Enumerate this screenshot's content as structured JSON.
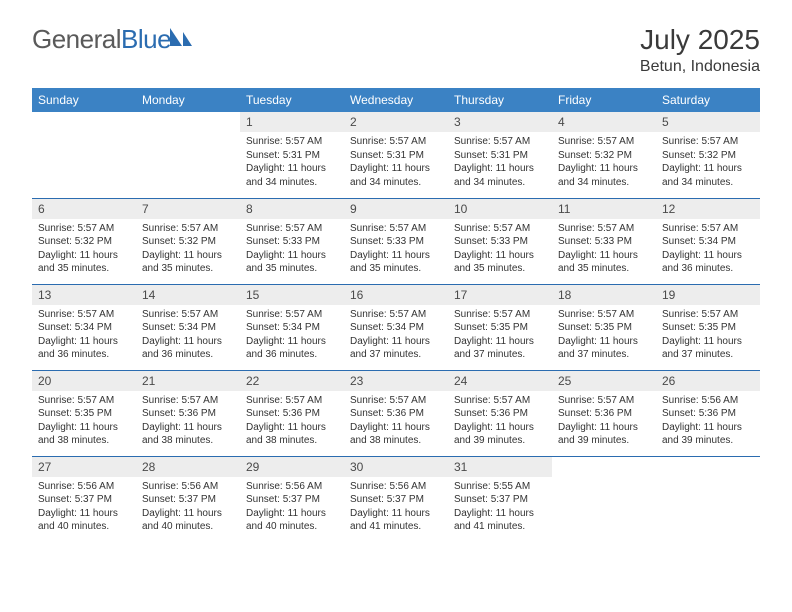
{
  "brand": {
    "part1": "General",
    "part2": "Blue"
  },
  "title": "July 2025",
  "location": "Betun, Indonesia",
  "colors": {
    "header_bg": "#3b82c4",
    "header_text": "#ffffff",
    "daynum_bg": "#ededed",
    "daynum_text": "#4a4a4a",
    "body_text": "#333333",
    "rule": "#2b6cb0",
    "logo_gray": "#5a5a5a",
    "logo_blue": "#2b6cb0"
  },
  "weekdays": [
    "Sunday",
    "Monday",
    "Tuesday",
    "Wednesday",
    "Thursday",
    "Friday",
    "Saturday"
  ],
  "weeks": [
    [
      null,
      null,
      {
        "num": "1",
        "sunrise": "Sunrise: 5:57 AM",
        "sunset": "Sunset: 5:31 PM",
        "daylight": "Daylight: 11 hours and 34 minutes."
      },
      {
        "num": "2",
        "sunrise": "Sunrise: 5:57 AM",
        "sunset": "Sunset: 5:31 PM",
        "daylight": "Daylight: 11 hours and 34 minutes."
      },
      {
        "num": "3",
        "sunrise": "Sunrise: 5:57 AM",
        "sunset": "Sunset: 5:31 PM",
        "daylight": "Daylight: 11 hours and 34 minutes."
      },
      {
        "num": "4",
        "sunrise": "Sunrise: 5:57 AM",
        "sunset": "Sunset: 5:32 PM",
        "daylight": "Daylight: 11 hours and 34 minutes."
      },
      {
        "num": "5",
        "sunrise": "Sunrise: 5:57 AM",
        "sunset": "Sunset: 5:32 PM",
        "daylight": "Daylight: 11 hours and 34 minutes."
      }
    ],
    [
      {
        "num": "6",
        "sunrise": "Sunrise: 5:57 AM",
        "sunset": "Sunset: 5:32 PM",
        "daylight": "Daylight: 11 hours and 35 minutes."
      },
      {
        "num": "7",
        "sunrise": "Sunrise: 5:57 AM",
        "sunset": "Sunset: 5:32 PM",
        "daylight": "Daylight: 11 hours and 35 minutes."
      },
      {
        "num": "8",
        "sunrise": "Sunrise: 5:57 AM",
        "sunset": "Sunset: 5:33 PM",
        "daylight": "Daylight: 11 hours and 35 minutes."
      },
      {
        "num": "9",
        "sunrise": "Sunrise: 5:57 AM",
        "sunset": "Sunset: 5:33 PM",
        "daylight": "Daylight: 11 hours and 35 minutes."
      },
      {
        "num": "10",
        "sunrise": "Sunrise: 5:57 AM",
        "sunset": "Sunset: 5:33 PM",
        "daylight": "Daylight: 11 hours and 35 minutes."
      },
      {
        "num": "11",
        "sunrise": "Sunrise: 5:57 AM",
        "sunset": "Sunset: 5:33 PM",
        "daylight": "Daylight: 11 hours and 35 minutes."
      },
      {
        "num": "12",
        "sunrise": "Sunrise: 5:57 AM",
        "sunset": "Sunset: 5:34 PM",
        "daylight": "Daylight: 11 hours and 36 minutes."
      }
    ],
    [
      {
        "num": "13",
        "sunrise": "Sunrise: 5:57 AM",
        "sunset": "Sunset: 5:34 PM",
        "daylight": "Daylight: 11 hours and 36 minutes."
      },
      {
        "num": "14",
        "sunrise": "Sunrise: 5:57 AM",
        "sunset": "Sunset: 5:34 PM",
        "daylight": "Daylight: 11 hours and 36 minutes."
      },
      {
        "num": "15",
        "sunrise": "Sunrise: 5:57 AM",
        "sunset": "Sunset: 5:34 PM",
        "daylight": "Daylight: 11 hours and 36 minutes."
      },
      {
        "num": "16",
        "sunrise": "Sunrise: 5:57 AM",
        "sunset": "Sunset: 5:34 PM",
        "daylight": "Daylight: 11 hours and 37 minutes."
      },
      {
        "num": "17",
        "sunrise": "Sunrise: 5:57 AM",
        "sunset": "Sunset: 5:35 PM",
        "daylight": "Daylight: 11 hours and 37 minutes."
      },
      {
        "num": "18",
        "sunrise": "Sunrise: 5:57 AM",
        "sunset": "Sunset: 5:35 PM",
        "daylight": "Daylight: 11 hours and 37 minutes."
      },
      {
        "num": "19",
        "sunrise": "Sunrise: 5:57 AM",
        "sunset": "Sunset: 5:35 PM",
        "daylight": "Daylight: 11 hours and 37 minutes."
      }
    ],
    [
      {
        "num": "20",
        "sunrise": "Sunrise: 5:57 AM",
        "sunset": "Sunset: 5:35 PM",
        "daylight": "Daylight: 11 hours and 38 minutes."
      },
      {
        "num": "21",
        "sunrise": "Sunrise: 5:57 AM",
        "sunset": "Sunset: 5:36 PM",
        "daylight": "Daylight: 11 hours and 38 minutes."
      },
      {
        "num": "22",
        "sunrise": "Sunrise: 5:57 AM",
        "sunset": "Sunset: 5:36 PM",
        "daylight": "Daylight: 11 hours and 38 minutes."
      },
      {
        "num": "23",
        "sunrise": "Sunrise: 5:57 AM",
        "sunset": "Sunset: 5:36 PM",
        "daylight": "Daylight: 11 hours and 38 minutes."
      },
      {
        "num": "24",
        "sunrise": "Sunrise: 5:57 AM",
        "sunset": "Sunset: 5:36 PM",
        "daylight": "Daylight: 11 hours and 39 minutes."
      },
      {
        "num": "25",
        "sunrise": "Sunrise: 5:57 AM",
        "sunset": "Sunset: 5:36 PM",
        "daylight": "Daylight: 11 hours and 39 minutes."
      },
      {
        "num": "26",
        "sunrise": "Sunrise: 5:56 AM",
        "sunset": "Sunset: 5:36 PM",
        "daylight": "Daylight: 11 hours and 39 minutes."
      }
    ],
    [
      {
        "num": "27",
        "sunrise": "Sunrise: 5:56 AM",
        "sunset": "Sunset: 5:37 PM",
        "daylight": "Daylight: 11 hours and 40 minutes."
      },
      {
        "num": "28",
        "sunrise": "Sunrise: 5:56 AM",
        "sunset": "Sunset: 5:37 PM",
        "daylight": "Daylight: 11 hours and 40 minutes."
      },
      {
        "num": "29",
        "sunrise": "Sunrise: 5:56 AM",
        "sunset": "Sunset: 5:37 PM",
        "daylight": "Daylight: 11 hours and 40 minutes."
      },
      {
        "num": "30",
        "sunrise": "Sunrise: 5:56 AM",
        "sunset": "Sunset: 5:37 PM",
        "daylight": "Daylight: 11 hours and 41 minutes."
      },
      {
        "num": "31",
        "sunrise": "Sunrise: 5:55 AM",
        "sunset": "Sunset: 5:37 PM",
        "daylight": "Daylight: 11 hours and 41 minutes."
      },
      null,
      null
    ]
  ]
}
